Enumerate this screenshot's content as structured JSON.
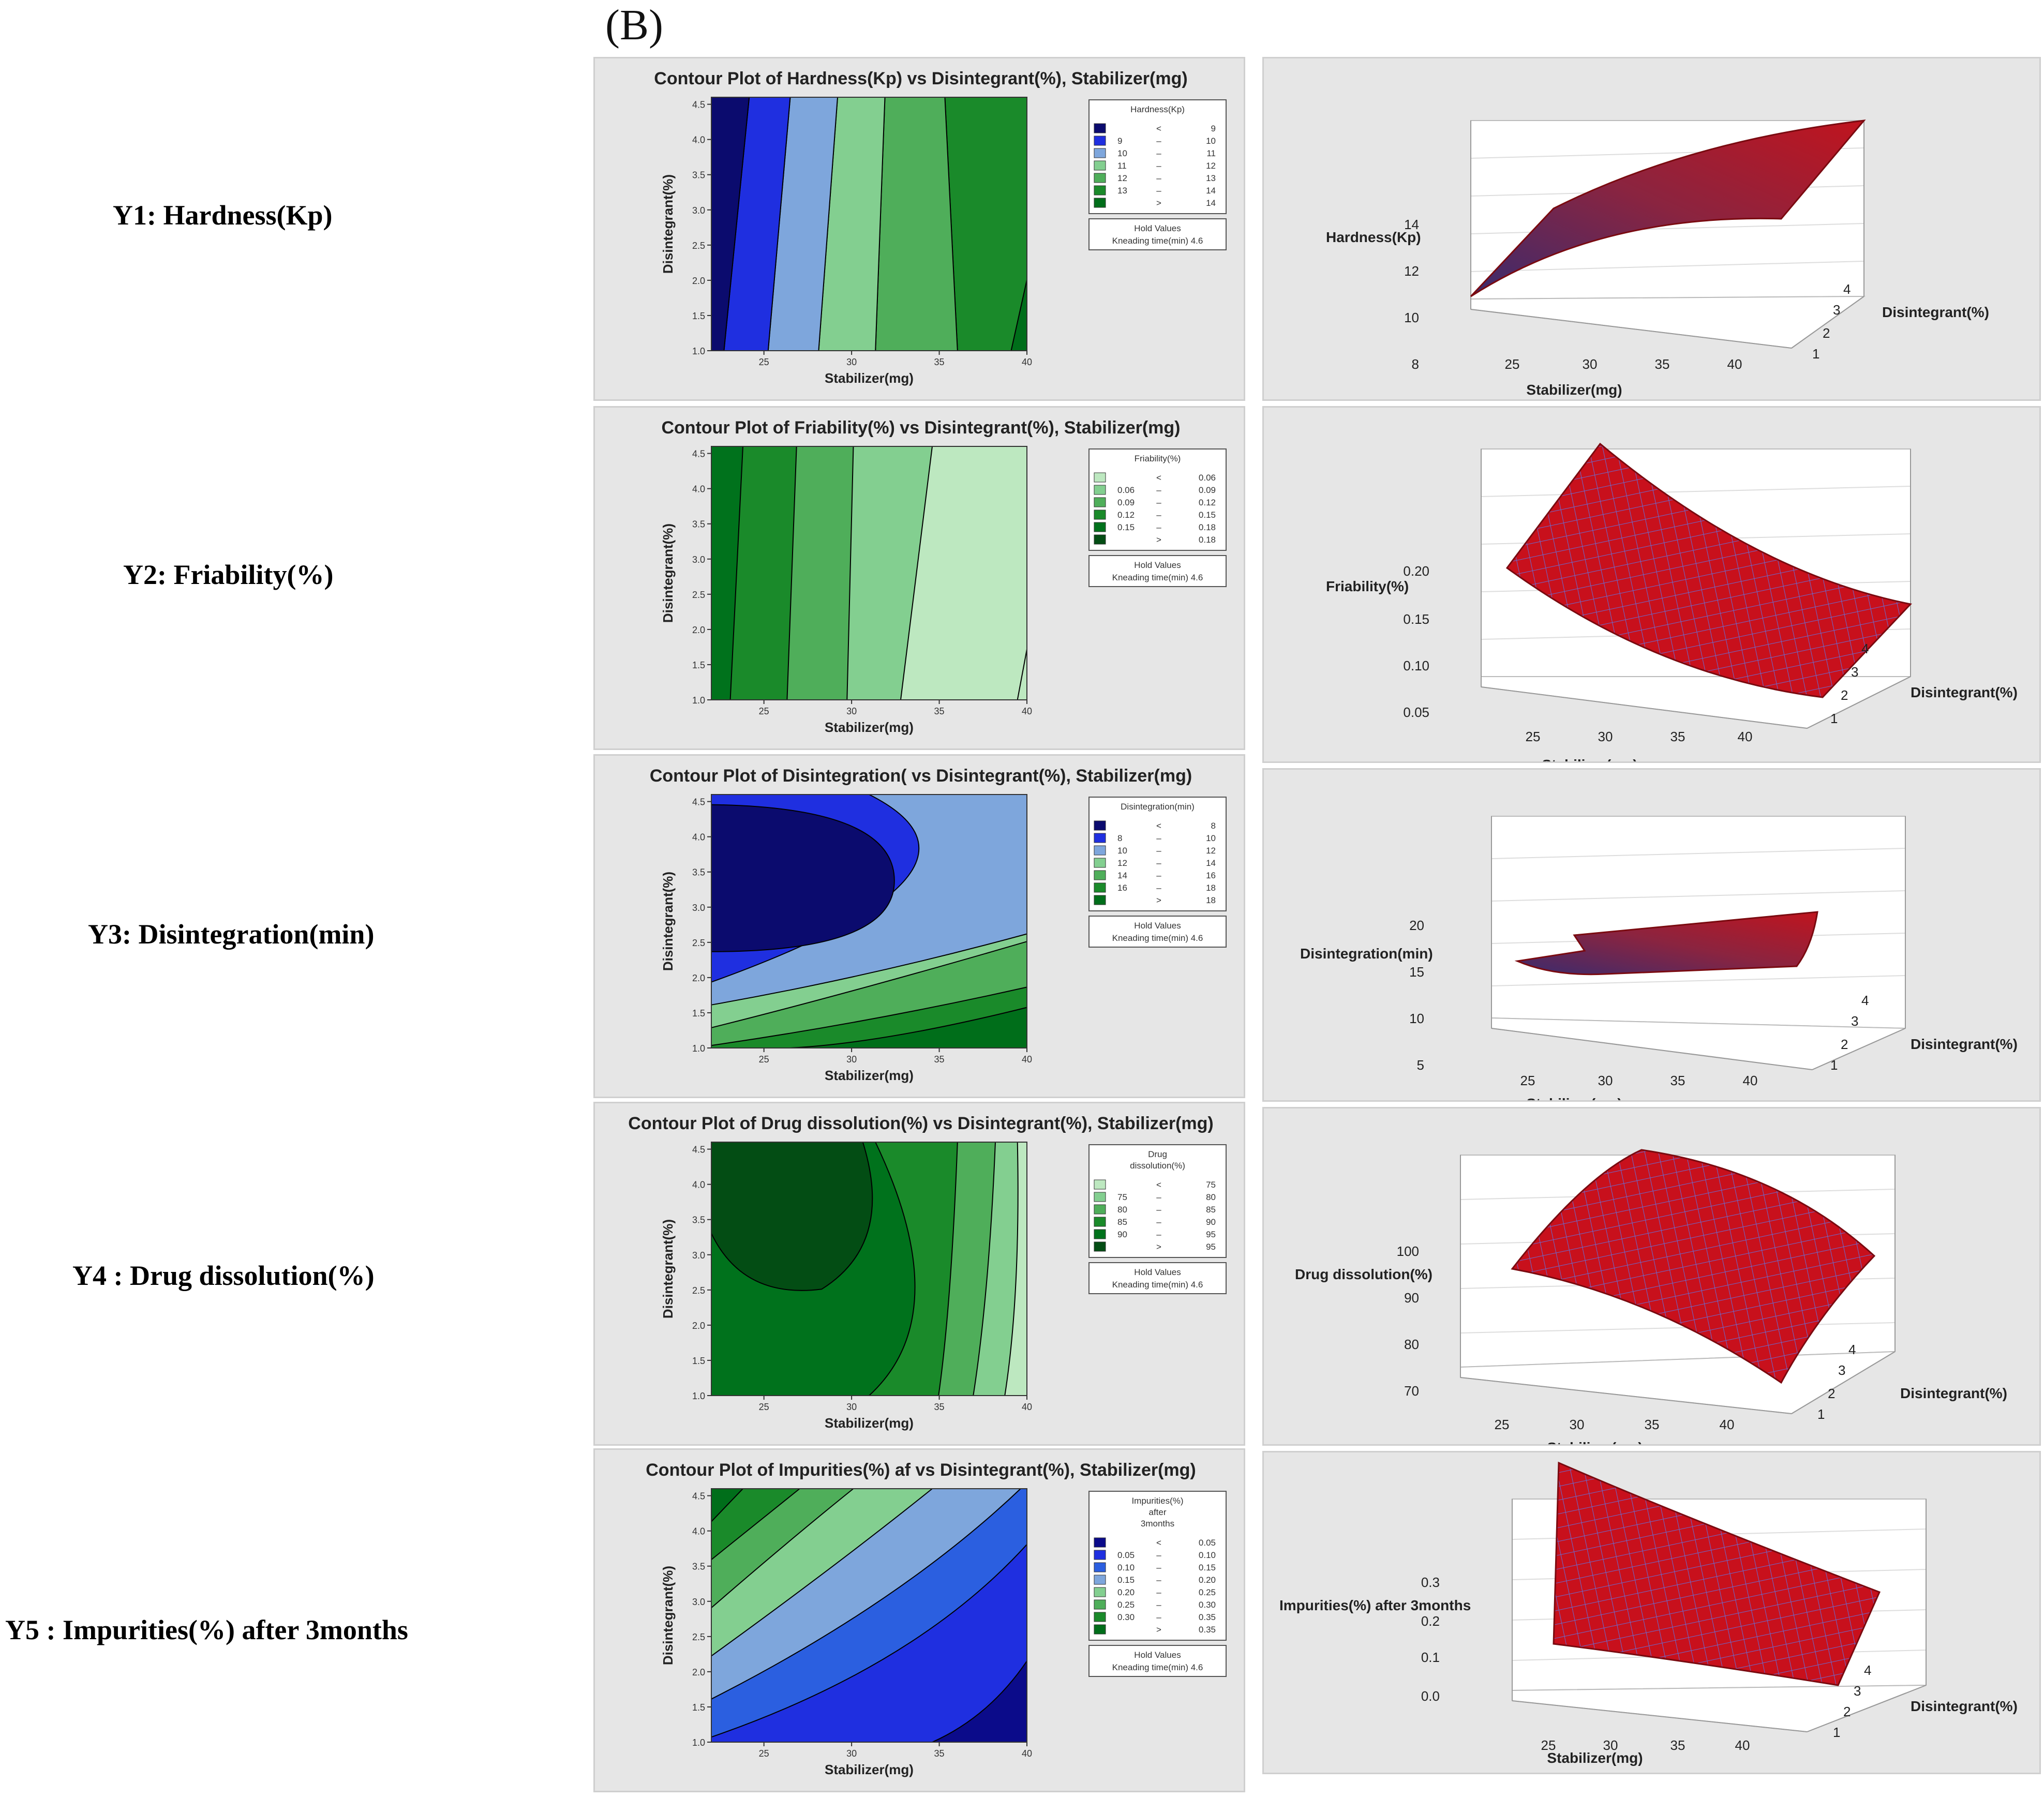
{
  "figure_label": "(B)",
  "rows": [
    {
      "label": "Y1: Hardness(Kp)",
      "contour": {
        "title": "Contour Plot of Hardness(Kp) vs Disintegrant(%), Stabilizer(mg)",
        "xlabel": "Stabilizer(mg)",
        "ylabel": "Disintegrant(%)",
        "xticks": [
          "25",
          "30",
          "35",
          "40"
        ],
        "yticks": [
          "1.0",
          "1.5",
          "2.0",
          "2.5",
          "3.0",
          "3.5",
          "4.0",
          "4.5"
        ],
        "legend_title": [
          "Hardness(Kp)"
        ],
        "legend": [
          {
            "lo": "",
            "op": "<",
            "hi": "9",
            "color": "#0b0b6e"
          },
          {
            "lo": "9",
            "op": "–",
            "hi": "10",
            "color": "#1f2fe0"
          },
          {
            "lo": "10",
            "op": "–",
            "hi": "11",
            "color": "#7ea6dc"
          },
          {
            "lo": "11",
            "op": "–",
            "hi": "12",
            "color": "#83cf90"
          },
          {
            "lo": "12",
            "op": "–",
            "hi": "13",
            "color": "#4fae5a"
          },
          {
            "lo": "13",
            "op": "–",
            "hi": "14",
            "color": "#1a8a2a"
          },
          {
            "lo": "",
            "op": ">",
            "hi": "14",
            "color": "#006e1a"
          }
        ],
        "hold_label": "Hold Values",
        "hold_value": "Kneading time(min) 4.6"
      },
      "surface": {
        "zlabel": "Hardness(Kp)",
        "xlabel": "Stabilizer(mg)",
        "ylabel": "Disintegrant(%)",
        "zticks": [
          "8",
          "10",
          "12",
          "14"
        ],
        "xticks": [
          "25",
          "30",
          "35",
          "40"
        ],
        "yticks": [
          "1",
          "2",
          "3",
          "4"
        ]
      }
    },
    {
      "label": "Y2: Friability(%)",
      "contour": {
        "title": "Contour Plot of Friability(%) vs Disintegrant(%), Stabilizer(mg)",
        "xlabel": "Stabilizer(mg)",
        "ylabel": "Disintegrant(%)",
        "xticks": [
          "25",
          "30",
          "35",
          "40"
        ],
        "yticks": [
          "1.0",
          "1.5",
          "2.0",
          "2.5",
          "3.0",
          "3.5",
          "4.0",
          "4.5"
        ],
        "legend_title": [
          "Friability(%)"
        ],
        "legend": [
          {
            "lo": "",
            "op": "<",
            "hi": "0.06",
            "color": "#bde8c0"
          },
          {
            "lo": "0.06",
            "op": "–",
            "hi": "0.09",
            "color": "#83cf90"
          },
          {
            "lo": "0.09",
            "op": "–",
            "hi": "0.12",
            "color": "#4fae5a"
          },
          {
            "lo": "0.12",
            "op": "–",
            "hi": "0.15",
            "color": "#1a8a2a"
          },
          {
            "lo": "0.15",
            "op": "–",
            "hi": "0.18",
            "color": "#00721c"
          },
          {
            "lo": "",
            "op": ">",
            "hi": "0.18",
            "color": "#034d14"
          }
        ],
        "hold_label": "Hold Values",
        "hold_value": "Kneading time(min) 4.6"
      },
      "surface": {
        "zlabel": "Friability(%)",
        "xlabel": "Stabilizer(mg)",
        "ylabel": "Disintegrant(%)",
        "zticks": [
          "0.05",
          "0.10",
          "0.15",
          "0.20"
        ],
        "xticks": [
          "25",
          "30",
          "35",
          "40"
        ],
        "yticks": [
          "1",
          "2",
          "3",
          "4"
        ]
      }
    },
    {
      "label": "Y3: Disintegration(min)",
      "contour": {
        "title": "Contour Plot of Disintegration( vs Disintegrant(%), Stabilizer(mg)",
        "xlabel": "Stabilizer(mg)",
        "ylabel": "Disintegrant(%)",
        "xticks": [
          "25",
          "30",
          "35",
          "40"
        ],
        "yticks": [
          "1.0",
          "1.5",
          "2.0",
          "2.5",
          "3.0",
          "3.5",
          "4.0",
          "4.5"
        ],
        "legend_title": [
          "Disintegration(min)"
        ],
        "legend": [
          {
            "lo": "",
            "op": "<",
            "hi": "8",
            "color": "#0b0b6e"
          },
          {
            "lo": "8",
            "op": "–",
            "hi": "10",
            "color": "#1f2fe0"
          },
          {
            "lo": "10",
            "op": "–",
            "hi": "12",
            "color": "#7ea6dc"
          },
          {
            "lo": "12",
            "op": "–",
            "hi": "14",
            "color": "#83cf90"
          },
          {
            "lo": "14",
            "op": "–",
            "hi": "16",
            "color": "#4fae5a"
          },
          {
            "lo": "16",
            "op": "–",
            "hi": "18",
            "color": "#1a8a2a"
          },
          {
            "lo": "",
            "op": ">",
            "hi": "18",
            "color": "#006e1a"
          }
        ],
        "hold_label": "Hold Values",
        "hold_value": "Kneading time(min) 4.6"
      },
      "surface": {
        "zlabel": "Disintegration(min)",
        "xlabel": "Stabilizer(mg)",
        "ylabel": "Disintegrant(%)",
        "zticks": [
          "5",
          "10",
          "15",
          "20"
        ],
        "xticks": [
          "25",
          "30",
          "35",
          "40"
        ],
        "yticks": [
          "1",
          "2",
          "3",
          "4"
        ]
      }
    },
    {
      "label": "Y4 : Drug dissolution(%)",
      "contour": {
        "title": "Contour Plot of Drug dissolution(%) vs Disintegrant(%), Stabilizer(mg)",
        "xlabel": "Stabilizer(mg)",
        "ylabel": "Disintegrant(%)",
        "xticks": [
          "25",
          "30",
          "35",
          "40"
        ],
        "yticks": [
          "1.0",
          "1.5",
          "2.0",
          "2.5",
          "3.0",
          "3.5",
          "4.0",
          "4.5"
        ],
        "legend_title": [
          "Drug",
          "dissolution(%)"
        ],
        "legend": [
          {
            "lo": "",
            "op": "<",
            "hi": "75",
            "color": "#bde8c0"
          },
          {
            "lo": "75",
            "op": "–",
            "hi": "80",
            "color": "#83cf90"
          },
          {
            "lo": "80",
            "op": "–",
            "hi": "85",
            "color": "#4fae5a"
          },
          {
            "lo": "85",
            "op": "–",
            "hi": "90",
            "color": "#1a8a2a"
          },
          {
            "lo": "90",
            "op": "–",
            "hi": "95",
            "color": "#00721c"
          },
          {
            "lo": "",
            "op": ">",
            "hi": "95",
            "color": "#034d14"
          }
        ],
        "hold_label": "Hold Values",
        "hold_value": "Kneading time(min) 4.6"
      },
      "surface": {
        "zlabel": "Drug dissolution(%)",
        "xlabel": "Stabilizer(mg)",
        "ylabel": "Disintegrant(%)",
        "zticks": [
          "70",
          "80",
          "90",
          "100"
        ],
        "xticks": [
          "25",
          "30",
          "35",
          "40"
        ],
        "yticks": [
          "1",
          "2",
          "3",
          "4"
        ]
      }
    },
    {
      "label": "Y5 : Impurities(%)  after 3months",
      "contour": {
        "title": "Contour Plot of Impurities(%) af vs Disintegrant(%), Stabilizer(mg)",
        "xlabel": "Stabilizer(mg)",
        "ylabel": "Disintegrant(%)",
        "xticks": [
          "25",
          "30",
          "35",
          "40"
        ],
        "yticks": [
          "1.0",
          "1.5",
          "2.0",
          "2.5",
          "3.0",
          "3.5",
          "4.0",
          "4.5"
        ],
        "legend_title": [
          "Impurities(%)",
          "after",
          "3months"
        ],
        "legend": [
          {
            "lo": "",
            "op": "<",
            "hi": "0.05",
            "color": "#0b0b8a"
          },
          {
            "lo": "0.05",
            "op": "–",
            "hi": "0.10",
            "color": "#1f2fe0"
          },
          {
            "lo": "0.10",
            "op": "–",
            "hi": "0.15",
            "color": "#2b5fe0"
          },
          {
            "lo": "0.15",
            "op": "–",
            "hi": "0.20",
            "color": "#7ea6dc"
          },
          {
            "lo": "0.20",
            "op": "–",
            "hi": "0.25",
            "color": "#83cf90"
          },
          {
            "lo": "0.25",
            "op": "–",
            "hi": "0.30",
            "color": "#4fae5a"
          },
          {
            "lo": "0.30",
            "op": "–",
            "hi": "0.35",
            "color": "#1a8a2a"
          },
          {
            "lo": "",
            "op": ">",
            "hi": "0.35",
            "color": "#006e1a"
          }
        ],
        "hold_label": "Hold Values",
        "hold_value": "Kneading time(min) 4.6"
      },
      "surface": {
        "zlabel": "Impurities(%) after 3months",
        "xlabel": "Stabilizer(mg)",
        "ylabel": "Disintegrant(%)",
        "zticks": [
          "0.0",
          "0.1",
          "0.2",
          "0.3"
        ],
        "xticks": [
          "25",
          "30",
          "35",
          "40"
        ],
        "yticks": [
          "1",
          "2",
          "3",
          "4"
        ]
      }
    }
  ],
  "colors": {
    "panel_bg": "#e6e6e6",
    "surface_fill": "#c8101c",
    "surface_grid": "#6a6ad0"
  },
  "chart_data": [
    {
      "type": "contour",
      "title": "Contour Plot of Hardness(Kp) vs Disintegrant(%), Stabilizer(mg)",
      "xlabel": "Stabilizer(mg)",
      "ylabel": "Disintegrant(%)",
      "xlim": [
        22,
        40
      ],
      "ylim": [
        1.0,
        4.6
      ],
      "levels": [
        "<9",
        "9-10",
        "10-11",
        "11-12",
        "12-13",
        "13-14",
        ">14"
      ],
      "hold_values": {
        "Kneading time(min)": 4.6
      }
    },
    {
      "type": "surface",
      "zlabel": "Hardness(Kp)",
      "xlabel": "Stabilizer(mg)",
      "ylabel": "Disintegrant(%)",
      "xlim": [
        22,
        40
      ],
      "ylim": [
        1,
        4.6
      ],
      "zlim": [
        8,
        15
      ]
    },
    {
      "type": "contour",
      "title": "Contour Plot of Friability(%) vs Disintegrant(%), Stabilizer(mg)",
      "xlabel": "Stabilizer(mg)",
      "ylabel": "Disintegrant(%)",
      "xlim": [
        22,
        40
      ],
      "ylim": [
        1.0,
        4.6
      ],
      "levels": [
        "<0.06",
        "0.06-0.09",
        "0.09-0.12",
        "0.12-0.15",
        "0.15-0.18",
        ">0.18"
      ],
      "hold_values": {
        "Kneading time(min)": 4.6
      }
    },
    {
      "type": "surface",
      "zlabel": "Friability(%)",
      "xlabel": "Stabilizer(mg)",
      "ylabel": "Disintegrant(%)",
      "xlim": [
        22,
        40
      ],
      "ylim": [
        1,
        4.6
      ],
      "zlim": [
        0.03,
        0.22
      ]
    },
    {
      "type": "contour",
      "title": "Contour Plot of Disintegration( vs Disintegrant(%), Stabilizer(mg)",
      "xlabel": "Stabilizer(mg)",
      "ylabel": "Disintegrant(%)",
      "xlim": [
        22,
        40
      ],
      "ylim": [
        1.0,
        4.6
      ],
      "levels": [
        "<8",
        "8-10",
        "10-12",
        "12-14",
        "14-16",
        "16-18",
        ">18"
      ],
      "hold_values": {
        "Kneading time(min)": 4.6
      }
    },
    {
      "type": "surface",
      "zlabel": "Disintegration(min)",
      "xlabel": "Stabilizer(mg)",
      "ylabel": "Disintegrant(%)",
      "xlim": [
        22,
        40
      ],
      "ylim": [
        1,
        4.6
      ],
      "zlim": [
        5,
        22
      ]
    },
    {
      "type": "contour",
      "title": "Contour Plot of Drug dissolution(%) vs Disintegrant(%), Stabilizer(mg)",
      "xlabel": "Stabilizer(mg)",
      "ylabel": "Disintegrant(%)",
      "xlim": [
        22,
        40
      ],
      "ylim": [
        1.0,
        4.6
      ],
      "levels": [
        "<75",
        "75-80",
        "80-85",
        "85-90",
        "90-95",
        ">95"
      ],
      "hold_values": {
        "Kneading time(min)": 4.6
      }
    },
    {
      "type": "surface",
      "zlabel": "Drug dissolution(%)",
      "xlabel": "Stabilizer(mg)",
      "ylabel": "Disintegrant(%)",
      "xlim": [
        22,
        40
      ],
      "ylim": [
        1,
        4.6
      ],
      "zlim": [
        65,
        102
      ]
    },
    {
      "type": "contour",
      "title": "Contour Plot of Impurities(%) af vs Disintegrant(%), Stabilizer(mg)",
      "xlabel": "Stabilizer(mg)",
      "ylabel": "Disintegrant(%)",
      "xlim": [
        22,
        40
      ],
      "ylim": [
        1.0,
        4.6
      ],
      "levels": [
        "<0.05",
        "0.05-0.10",
        "0.10-0.15",
        "0.15-0.20",
        "0.20-0.25",
        "0.25-0.30",
        "0.30-0.35",
        ">0.35"
      ],
      "hold_values": {
        "Kneading time(min)": 4.6
      }
    },
    {
      "type": "surface",
      "zlabel": "Impurities(%) after 3months",
      "xlabel": "Stabilizer(mg)",
      "ylabel": "Disintegrant(%)",
      "xlim": [
        22,
        40
      ],
      "ylim": [
        1,
        4.6
      ],
      "zlim": [
        0.0,
        0.38
      ]
    }
  ]
}
